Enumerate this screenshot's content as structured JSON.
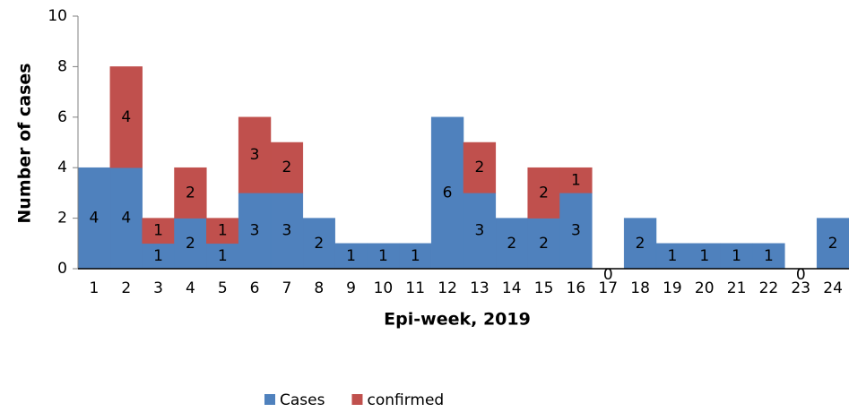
{
  "chart_data": {
    "type": "stacked_bar",
    "x_label": "Epi-week, 2019",
    "y_label": "Number of cases",
    "categories": [
      "1",
      "2",
      "3",
      "4",
      "5",
      "6",
      "7",
      "8",
      "9",
      "10",
      "11",
      "12",
      "13",
      "14",
      "15",
      "16",
      "17",
      "18",
      "19",
      "20",
      "21",
      "22",
      "23",
      "24"
    ],
    "series": [
      {
        "name": "Cases",
        "color": "#4f81bd",
        "values": [
          4,
          4,
          1,
          2,
          1,
          3,
          3,
          2,
          1,
          1,
          1,
          6,
          3,
          2,
          2,
          3,
          0,
          2,
          1,
          1,
          1,
          1,
          0,
          2
        ]
      },
      {
        "name": "confirmed",
        "color": "#c0504d",
        "values": [
          null,
          4,
          1,
          2,
          1,
          3,
          2,
          null,
          null,
          null,
          null,
          null,
          2,
          null,
          2,
          1,
          null,
          null,
          null,
          null,
          null,
          null,
          null,
          null
        ]
      }
    ],
    "ylim": [
      0,
      10
    ],
    "yticks": [
      0,
      2,
      4,
      6,
      8,
      10
    ],
    "legend": "bottom"
  }
}
